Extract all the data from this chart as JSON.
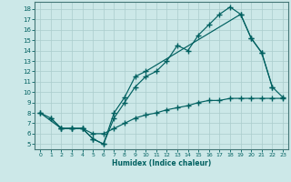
{
  "xlabel": "Humidex (Indice chaleur)",
  "background_color": "#cce8e8",
  "grid_color": "#aacccc",
  "line_color": "#006060",
  "xlim": [
    -0.5,
    23.5
  ],
  "ylim": [
    4.5,
    18.7
  ],
  "xticks": [
    0,
    1,
    2,
    3,
    4,
    5,
    6,
    7,
    8,
    9,
    10,
    11,
    12,
    13,
    14,
    15,
    16,
    17,
    18,
    19,
    20,
    21,
    22,
    23
  ],
  "yticks": [
    5,
    6,
    7,
    8,
    9,
    10,
    11,
    12,
    13,
    14,
    15,
    16,
    17,
    18
  ],
  "line1_x": [
    0,
    1,
    2,
    3,
    4,
    5,
    6,
    7,
    8,
    9,
    10,
    11,
    12,
    13,
    14,
    15,
    16,
    17,
    18,
    19,
    20,
    21,
    22
  ],
  "line1_y": [
    8.0,
    7.5,
    6.5,
    6.5,
    6.5,
    5.5,
    5.0,
    7.5,
    9.0,
    10.5,
    11.5,
    12.0,
    13.0,
    14.5,
    14.0,
    15.5,
    16.5,
    17.5,
    18.2,
    17.5,
    15.2,
    13.8,
    10.5
  ],
  "line2_x": [
    0,
    2,
    3,
    4,
    5,
    6,
    7,
    8,
    9,
    10,
    19,
    20,
    21,
    22,
    23
  ],
  "line2_y": [
    8.0,
    6.5,
    6.5,
    6.5,
    5.5,
    5.0,
    8.0,
    9.5,
    11.5,
    12.0,
    17.5,
    15.2,
    13.8,
    10.5,
    9.5
  ],
  "line3_x": [
    1,
    2,
    3,
    4,
    5,
    6,
    7,
    8,
    9,
    10,
    11,
    12,
    13,
    14,
    15,
    16,
    17,
    18,
    19,
    20,
    21,
    22,
    23
  ],
  "line3_y": [
    7.5,
    6.5,
    6.5,
    6.5,
    6.0,
    6.0,
    6.5,
    7.0,
    7.5,
    7.8,
    8.0,
    8.3,
    8.5,
    8.7,
    9.0,
    9.2,
    9.2,
    9.4,
    9.4,
    9.4,
    9.4,
    9.4,
    9.4
  ]
}
